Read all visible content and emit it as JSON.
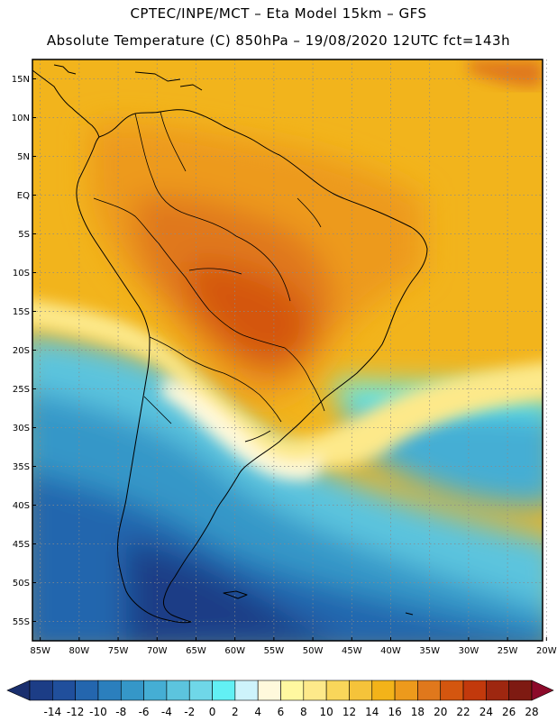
{
  "header": {
    "line1": "CPTEC/INPE/MCT –  Eta Model 15km – GFS",
    "line2": "Absolute Temperature (C) 850hPa – 19/08/2020 12UTC fct=143h"
  },
  "map": {
    "region": "South America",
    "field": "850hPa temperature (C)",
    "lat_labels": [
      "15N",
      "10N",
      "5N",
      "EQ",
      "5S",
      "10S",
      "15S",
      "20S",
      "25S",
      "30S",
      "35S",
      "40S",
      "45S",
      "50S",
      "55S"
    ],
    "lat_values": [
      15,
      10,
      5,
      0,
      -5,
      -10,
      -15,
      -20,
      -25,
      -30,
      -35,
      -40,
      -45,
      -50,
      -55
    ],
    "lon_labels": [
      "85W",
      "80W",
      "75W",
      "70W",
      "65W",
      "60W",
      "55W",
      "50W",
      "45W",
      "40W",
      "35W",
      "30W",
      "25W",
      "20W"
    ],
    "lon_values": [
      -85,
      -80,
      -75,
      -70,
      -65,
      -60,
      -55,
      -50,
      -45,
      -40,
      -35,
      -30,
      -25,
      -20
    ],
    "lat_range": [
      -57.5,
      17.5
    ],
    "lon_range": [
      -86.0,
      -20.5
    ]
  },
  "colorbar": {
    "labels": [
      "-14",
      "-12",
      "-10",
      "-8",
      "-6",
      "-4",
      "-2",
      "0",
      "2",
      "4",
      "6",
      "8",
      "10",
      "12",
      "14",
      "16",
      "18",
      "20",
      "22",
      "24",
      "26",
      "28"
    ],
    "colors": [
      "#1c3d86",
      "#204f9c",
      "#2466ae",
      "#2b7fbd",
      "#3597c8",
      "#45aed4",
      "#5cc4de",
      "#6fd7e8",
      "#62f0f4",
      "#cdf3fb",
      "#fff9dc",
      "#fff8a0",
      "#fde98a",
      "#f9d65a",
      "#f5c33a",
      "#f3b319",
      "#ed9a1c",
      "#e0781c",
      "#d4560f",
      "#c2390c",
      "#9e2710",
      "#7e1a12"
    ],
    "under_color": "#1a2f6e",
    "over_color": "#8c0a2a"
  }
}
